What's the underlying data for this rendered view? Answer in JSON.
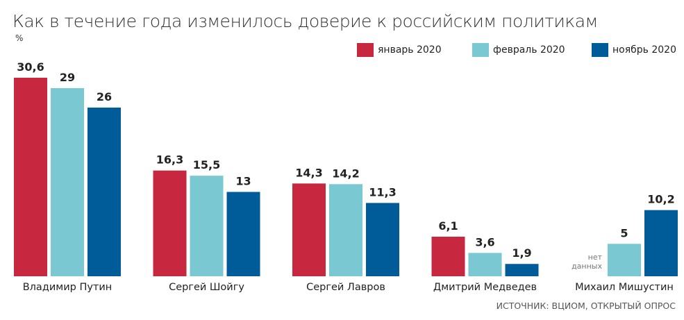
{
  "chart_data": {
    "type": "bar",
    "title": "Как в течение года изменилось доверие к российским политикам",
    "unit": "%",
    "categories": [
      "Владимир Путин",
      "Сергей Шойгу",
      "Сергей Лавров",
      "Дмитрий Медведев",
      "Михаил Мишустин"
    ],
    "series": [
      {
        "name": "январь 2020",
        "color": "#c72840",
        "values": [
          30.6,
          16.3,
          14.3,
          6.1,
          null
        ],
        "labels": [
          "30,6",
          "16,3",
          "14,3",
          "6,1",
          ""
        ]
      },
      {
        "name": "февраль 2020",
        "color": "#7ac8d2",
        "values": [
          29,
          15.5,
          14.2,
          3.6,
          5
        ],
        "labels": [
          "29",
          "15,5",
          "14,2",
          "3,6",
          "5"
        ]
      },
      {
        "name": "ноябрь 2020",
        "color": "#005b99",
        "values": [
          26,
          13,
          11.3,
          1.9,
          10.2
        ],
        "labels": [
          "26",
          "13",
          "11,3",
          "1,9",
          "10,2"
        ]
      }
    ],
    "no_data_label": "нет данных",
    "ylim": [
      0,
      31
    ],
    "grid": false,
    "legend": "top-right",
    "source": "ИСТОЧНИК: ВЦИОМ, ОТКРЫТЫЙ ОПРОС"
  }
}
